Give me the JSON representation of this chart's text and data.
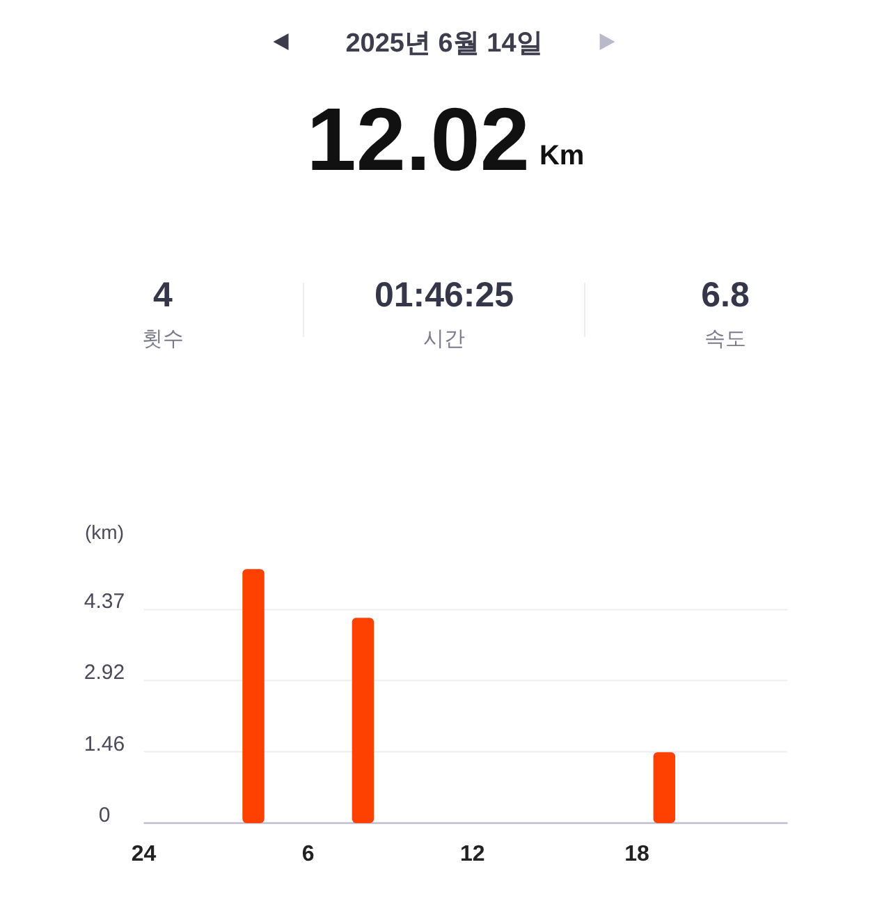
{
  "chart_data": {
    "type": "bar",
    "title": "2025년 6월 14일",
    "annotations": [
      "12.02",
      "Km",
      "4",
      "횟수",
      "01:46:25",
      "시간",
      "6.8",
      "속도"
    ],
    "ylabel": "(km)",
    "categories": [
      "24",
      null,
      null,
      null,
      null,
      null,
      "6",
      null,
      null,
      null,
      null,
      null,
      "12",
      null,
      null,
      null,
      null,
      null,
      "18",
      null,
      null,
      null,
      null,
      null
    ],
    "values": [
      null,
      null,
      null,
      null,
      5.2,
      null,
      null,
      null,
      4.2,
      null,
      null,
      null,
      null,
      null,
      null,
      null,
      null,
      null,
      null,
      1.45,
      null,
      null,
      null,
      null
    ],
    "color": "#fe4001",
    "ylim": [
      0,
      5.2
    ],
    "yticks": [
      0,
      1.46,
      2.92,
      4.37
    ],
    "grid": "y"
  }
}
